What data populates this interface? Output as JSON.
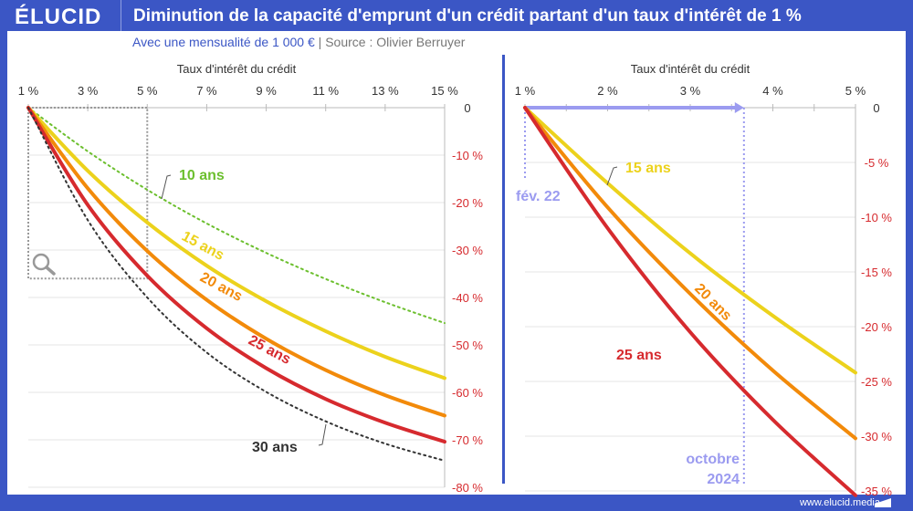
{
  "header": {
    "logo": "ÉLUCID",
    "title": "Diminution de la capacité d'emprunt d'un crédit partant d'un taux d'intérêt de 1 %",
    "subtitle": "Avec une mensualité de 1 000 €",
    "separator": "|",
    "source": "Source : Olivier Berruyer"
  },
  "footer": {
    "url": "www.elucid.media"
  },
  "colors": {
    "brand": "#3b56c5",
    "10 ans": "#6cbf2e",
    "15 ans": "#ecd21c",
    "20 ans": "#f28a0a",
    "25 ans": "#d62a2e",
    "30 ans": "#333333",
    "annotation": "#9b9bf0",
    "negative_tick": "#d62a2e"
  },
  "chart_data": [
    {
      "type": "line",
      "xlabel": "Taux d'intérêt du crédit",
      "ylabel": "",
      "xlim": [
        1,
        15
      ],
      "ylim": [
        -80,
        0
      ],
      "x_tick_labels": [
        "1 %",
        "3 %",
        "5 %",
        "7 %",
        "9 %",
        "11 %",
        "13 %",
        "15 %"
      ],
      "y_tick_labels": [
        "0",
        "-10 %",
        "-20 %",
        "-30 %",
        "-40 %",
        "-50 %",
        "-60 %",
        "-70 %",
        "-80 %"
      ],
      "grid": true,
      "zoom_box": {
        "x": [
          1,
          5
        ],
        "y": [
          -36,
          0
        ]
      },
      "x": [
        1,
        3,
        5,
        7,
        9,
        11,
        13,
        15
      ],
      "series": [
        {
          "name": "10 ans",
          "style": "dotted",
          "values": [
            0,
            -9.2,
            -17.3,
            -24.4,
            -30.6,
            -36.1,
            -41.0,
            -45.4
          ]
        },
        {
          "name": "15 ans",
          "style": "solid",
          "values": [
            0,
            -13.3,
            -24.2,
            -33.3,
            -40.8,
            -47.1,
            -52.5,
            -57.0
          ]
        },
        {
          "name": "20 ans",
          "style": "solid",
          "values": [
            0,
            -17.0,
            -30.2,
            -40.5,
            -48.7,
            -55.3,
            -60.6,
            -64.9
          ]
        },
        {
          "name": "25 ans",
          "style": "solid",
          "values": [
            0,
            -20.5,
            -35.4,
            -46.5,
            -54.9,
            -61.4,
            -66.4,
            -70.4
          ]
        },
        {
          "name": "30 ans",
          "style": "dotted",
          "values": [
            0,
            -23.7,
            -40.0,
            -51.6,
            -59.9,
            -66.1,
            -70.8,
            -74.4
          ]
        }
      ]
    },
    {
      "type": "line",
      "xlabel": "Taux d'intérêt du crédit",
      "ylabel": "",
      "xlim": [
        1,
        5
      ],
      "ylim": [
        -35,
        0
      ],
      "x_tick_labels": [
        "1 %",
        "2 %",
        "3 %",
        "4 %",
        "5 %"
      ],
      "y_tick_labels": [
        "0",
        "-5 %",
        "-10 %",
        "-15 %",
        "-20 %",
        "-25 %",
        "-30 %",
        "-35 %"
      ],
      "grid": true,
      "x": [
        1,
        2,
        3,
        4,
        5
      ],
      "series": [
        {
          "name": "15 ans",
          "values": [
            0,
            -6.9,
            -13.3,
            -19.0,
            -24.2
          ]
        },
        {
          "name": "20 ans",
          "values": [
            0,
            -9.1,
            -17.0,
            -24.0,
            -30.2
          ]
        },
        {
          "name": "25 ans",
          "values": [
            0,
            -11.0,
            -20.5,
            -28.5,
            -35.4
          ]
        }
      ],
      "annotations": [
        {
          "label": "fév. 22",
          "x": 1
        },
        {
          "label": "octobre",
          "label2": "2024",
          "x": 3.65
        }
      ]
    }
  ]
}
